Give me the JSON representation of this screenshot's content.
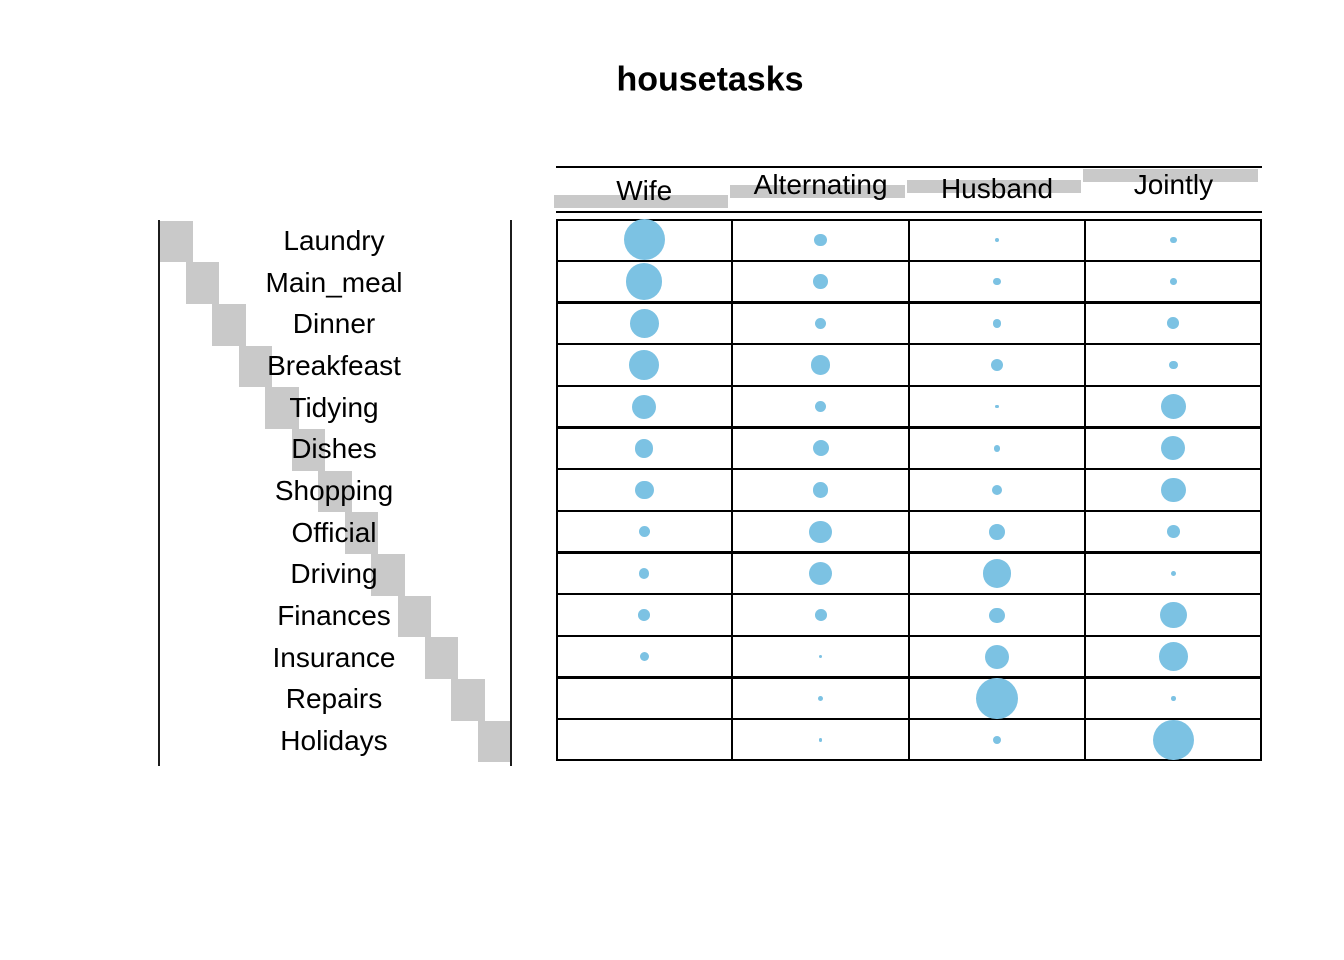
{
  "title": "housetasks",
  "chart_data": {
    "type": "balloon",
    "title": "housetasks",
    "columns": [
      "Wife",
      "Alternating",
      "Husband",
      "Jointly"
    ],
    "rows": [
      "Laundry",
      "Main_meal",
      "Dinner",
      "Breakfeast",
      "Tidying",
      "Dishes",
      "Shopping",
      "Official",
      "Driving",
      "Finances",
      "Insurance",
      "Repairs",
      "Holidays"
    ],
    "values": [
      [
        156,
        14,
        2,
        4
      ],
      [
        124,
        20,
        5,
        4
      ],
      [
        77,
        11,
        7,
        13
      ],
      [
        82,
        36,
        15,
        7
      ],
      [
        53,
        11,
        1,
        57
      ],
      [
        32,
        24,
        4,
        53
      ],
      [
        33,
        23,
        9,
        55
      ],
      [
        12,
        46,
        23,
        15
      ],
      [
        10,
        51,
        75,
        3
      ],
      [
        13,
        13,
        21,
        66
      ],
      [
        8,
        1,
        53,
        77
      ],
      [
        0,
        3,
        160,
        2
      ],
      [
        0,
        1,
        6,
        153
      ]
    ],
    "max_value": 160,
    "show_zeros": false,
    "sizing": "circle area proportional to value",
    "balloon_color": "#7cc2e3",
    "highlight_color": "#c9c9c9",
    "line_color": "#000000",
    "grid": "on",
    "legend": "none"
  }
}
